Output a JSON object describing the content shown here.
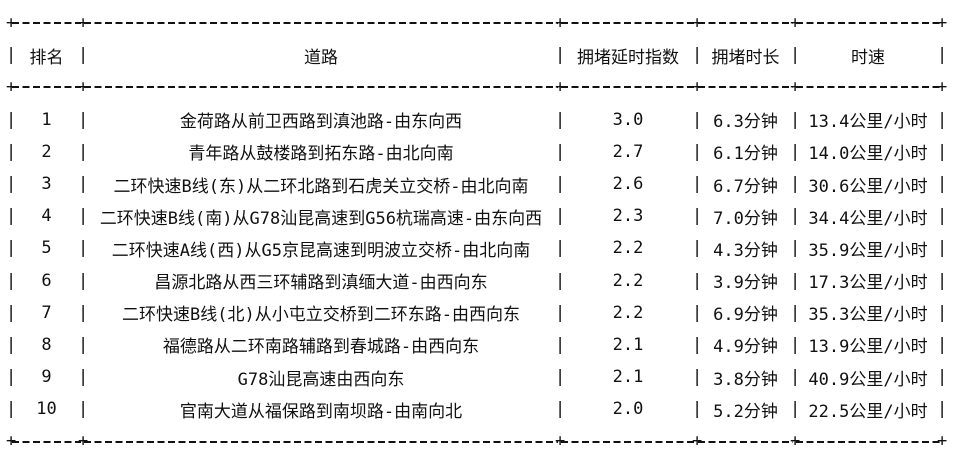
{
  "table": {
    "glyphs": {
      "corner": "+",
      "separator": "|",
      "dash": "-"
    },
    "columns": [
      {
        "key": "rank",
        "label": "排名"
      },
      {
        "key": "road",
        "label": "道路"
      },
      {
        "key": "index",
        "label": "拥堵延时指数"
      },
      {
        "key": "duration",
        "label": "拥堵时长"
      },
      {
        "key": "speed",
        "label": "时速"
      }
    ],
    "rows": [
      {
        "rank": "1",
        "road": "金荷路从前卫西路到滇池路-由东向西",
        "index": "3.0",
        "duration": "6.3分钟",
        "speed": "13.4公里/小时"
      },
      {
        "rank": "2",
        "road": "青年路从鼓楼路到拓东路-由北向南",
        "index": "2.7",
        "duration": "6.1分钟",
        "speed": "14.0公里/小时"
      },
      {
        "rank": "3",
        "road": "二环快速B线(东)从二环北路到石虎关立交桥-由北向南",
        "index": "2.6",
        "duration": "6.7分钟",
        "speed": "30.6公里/小时"
      },
      {
        "rank": "4",
        "road": "二环快速B线(南)从G78汕昆高速到G56杭瑞高速-由东向西",
        "index": "2.3",
        "duration": "7.0分钟",
        "speed": "34.4公里/小时"
      },
      {
        "rank": "5",
        "road": "二环快速A线(西)从G5京昆高速到明波立交桥-由北向南",
        "index": "2.2",
        "duration": "4.3分钟",
        "speed": "35.9公里/小时"
      },
      {
        "rank": "6",
        "road": "昌源北路从西三环辅路到滇缅大道-由西向东",
        "index": "2.2",
        "duration": "3.9分钟",
        "speed": "17.3公里/小时"
      },
      {
        "rank": "7",
        "road": "二环快速B线(北)从小屯立交桥到二环东路-由西向东",
        "index": "2.2",
        "duration": "6.9分钟",
        "speed": "35.3公里/小时"
      },
      {
        "rank": "8",
        "road": "福德路从二环南路辅路到春城路-由西向东",
        "index": "2.1",
        "duration": "4.9分钟",
        "speed": "13.9公里/小时"
      },
      {
        "rank": "9",
        "road": "G78汕昆高速由西向东",
        "index": "2.1",
        "duration": "3.8分钟",
        "speed": "40.9公里/小时"
      },
      {
        "rank": "10",
        "road": "官南大道从福保路到南坝路-由南向北",
        "index": "2.0",
        "duration": "5.2分钟",
        "speed": "22.5公里/小时"
      }
    ]
  },
  "colors": {
    "text": "#111111",
    "background": "#ffffff"
  }
}
